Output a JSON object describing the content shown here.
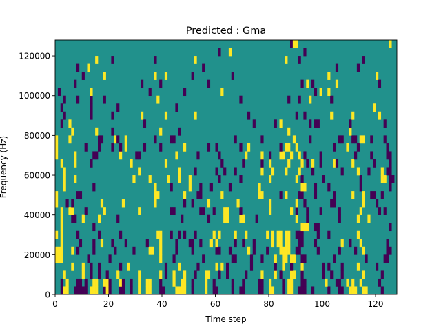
{
  "chart_data": {
    "type": "heatmap",
    "title": "Predicted : Gma",
    "xlabel": "Time step",
    "ylabel": "Frequency (Hz)",
    "xlim": [
      0,
      128
    ],
    "ylim": [
      0,
      128000
    ],
    "x_ticks": [
      0,
      20,
      40,
      60,
      80,
      100,
      120
    ],
    "y_ticks": [
      0,
      20000,
      40000,
      60000,
      80000,
      100000,
      120000
    ],
    "n_time_steps": 128,
    "n_freq_bins": 32,
    "bin_hz": 4000,
    "colormap": {
      "p": "#440154",
      ".": "#21918c",
      "y": "#fde725"
    },
    "legend_note": "rows listed from lowest frequency bin upward; p=low, .=mid, y=high",
    "rows": [
      "..pyy..ppppp.yyy..pyp...pp..p..y..yy...pp....yyyy..p....y..pp.....p..pp.....pp..yy...p.yy..ppp..p.....p...pp..yyy..yy.....p..",
      "..p.y...pp.p..yy..yyp...yp..p..y..yy...p....y..yy..p....y..p......p...p.....pp..y....p.yy...pp.......y...pp..y.y..y......p...",
      "...y......y..p..p..p...y.......y.......y.p..y...y...p...yy...p..p......p.....y....y.p...yy..p.......p..p...p.......y......p..",
      "......y...y..p..p.......p..y.............p....y......p......y.y.p........p........p..y..p...y.......p.p....p.....y......p.....",
      "yyy.........p.......p..................y....p..........p..........pp.....p...p....y..yy.yy..pp..........p...........p......pp..",
      "yyy...y.p.....p.......p......p.....yy..y.....p.....p........pp...p......y.p....p....yyyy..pp......p.......p.....p..y........pp",
      "..y......p....p..y...p....p.......p....y.....p....pp..p...y.y......p..p...p......y.yy.yy...pp....p.........y..p...y.........p.",
      "y.y.....p.......p.......p.............yy...p..p.p...p......y.y.....y...y.......y.y.yy.yy..ppp.....p...p..........y...........",
      "..y...........p.............................................................................yyy..pp..........................p",
      "..y...pp..y.....y......p.......................p.........p.....yy....yy....p..............y...p...........p......y...y.......",
      "..y..yy....p......y............y...........pp.........pp...p...yy....p..........y.......y.p...p....p......p.......y......p.p..",
      "y...p.p..........y.......y...........y..........p..p.....y..........y...........y.........y..p.........pp..........y....p.....",
      "y.......pp...........................yy.........y....pp.......y.............yy......p.y....pp....p......p......y...y..pp..p...",
      "...y..........p......................y.....p......y...p...p......p..........y...............yy...p....p...........p..........p",
      "...y...y.....................y.....y......y...y...y..........p.......p..........y.........y.p.......p.............p.......yy.pp",
      "...y...........................y..............y.....p.......p..p...p.........y...y....y....y....p..........p.....y...p....y.pp",
      "..y....y.....p..............y............y....................p.......p......p..y......y....y.p.y..p....yp.....y.......p.....p",
      "y......y......pp........y.....pp.............y.......p.......p.........y.....y..p...yy..y..y.p.....p............p.....p.....pp",
      "y..........p....p....p..p.y......p.....p........y........p..p........p..y...........p.yy..y.............p....y...p..........p.",
      "y....y..........pp....yp..y..........p.....pp......................p.........p...........y.....p..........pp...pp.yy..p....p.",
      "......y........y.....p.................y......p........................................y......................y...............",
      "..p..y...........................p........................................p.......p.y..........p.pp...........p............p...",
      "...p.........p.......p..........y........y..........y...................p.................p..p.........y.......y.........y.....",
      "..p..........p.........p.....................p.........................................................................y.......",
      "...p....p....p....p...................y..............................p.................p...p...y.......p.......................",
      ".p...........y.....................p............p.............y..................................p.y..y.......................",
      ".......p........................p......p.................p..................................p.y.p........y...............p..",
      "..........p.......y..................y...y.........p..............p...................................y.................y...",
      "........p...y..........................................p.................................................p.......p........",
      "...............y.....p...............p..............y.................................y....p.......................p.........",
      ".............................................................p...y...........................p....................................",
      "........................................................................................pyy..................................y"
    ]
  }
}
